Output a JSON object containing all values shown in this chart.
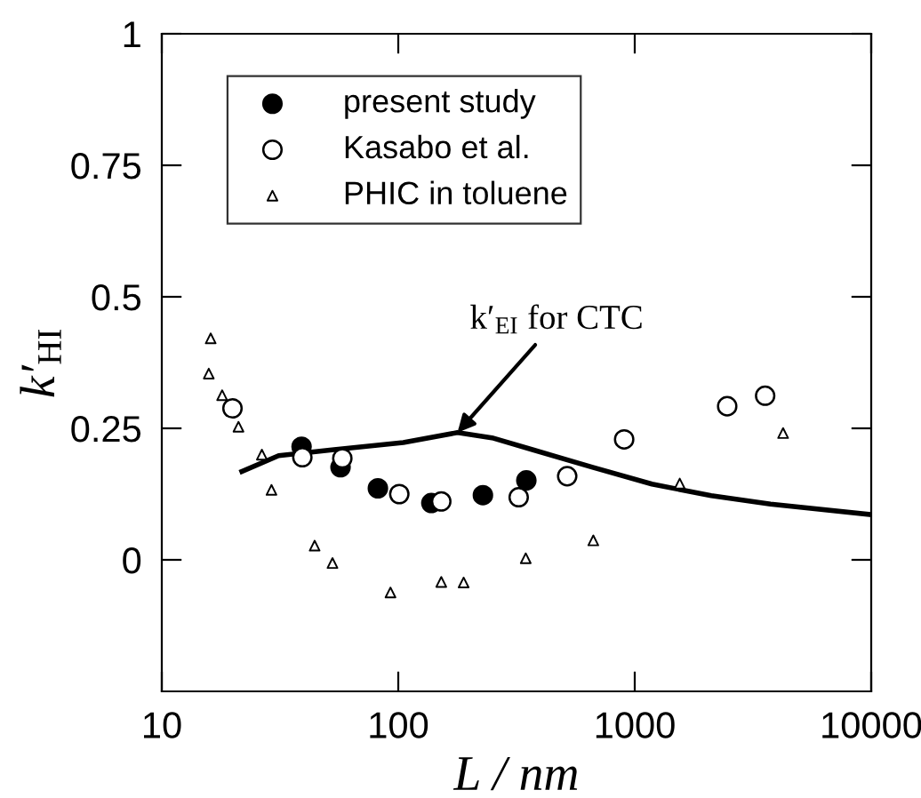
{
  "chart_data": {
    "type": "scatter",
    "xlabel": "L / nm",
    "ylabel": "k′$_{HI}$",
    "log": "x",
    "xlim": [
      10,
      10000
    ],
    "xticks": [
      10,
      100,
      1000,
      10000
    ],
    "ylim": [
      -0.25,
      1
    ],
    "yticks": [
      0,
      0.25,
      0.5,
      0.75,
      1
    ],
    "grid": false,
    "legend": "top left",
    "series": [
      {
        "name": "present study",
        "marker": "circle",
        "color": "#000000",
        "x": [
          39,
          57,
          82,
          138,
          228,
          348
        ],
        "values": [
          0.215,
          0.176,
          0.136,
          0.108,
          0.123,
          0.151
        ]
      },
      {
        "name": "Kasabo et al.",
        "marker": "circle",
        "color": "#ffffff",
        "x": [
          19.9,
          39.3,
          58,
          101,
          152,
          323,
          518,
          902,
          2460,
          3560
        ],
        "values": [
          0.288,
          0.195,
          0.193,
          0.125,
          0.111,
          0.119,
          0.159,
          0.229,
          0.292,
          0.312
        ]
      },
      {
        "name": "PHIC in toluene",
        "marker": "triangle",
        "color": "#ffffff",
        "x": [
          16.1,
          15.8,
          18.0,
          21.1,
          26.5,
          29.1,
          44.3,
          52.7,
          92.7,
          152,
          189,
          346,
          668,
          1550,
          4240
        ],
        "values": [
          0.421,
          0.354,
          0.313,
          0.253,
          0.2,
          0.133,
          0.027,
          -0.006,
          -0.062,
          -0.042,
          -0.043,
          0.003,
          0.037,
          0.145,
          0.241
        ]
      },
      {
        "type": "line",
        "marker": "none",
        "line_style": "solid",
        "color": "#000000",
        "x": [
          21.8,
          31.2,
          52.4,
          105,
          178,
          249,
          372,
          664,
          1183,
          2105,
          3750,
          10000
        ],
        "values": [
          0.168,
          0.198,
          0.209,
          0.223,
          0.242,
          0.232,
          0.209,
          0.176,
          0.144,
          0.122,
          0.106,
          0.086
        ]
      }
    ],
    "annotations": [
      {
        "text": "k′$_{EI}$ for CTC",
        "x": 178,
        "y": 0.242
      }
    ]
  }
}
